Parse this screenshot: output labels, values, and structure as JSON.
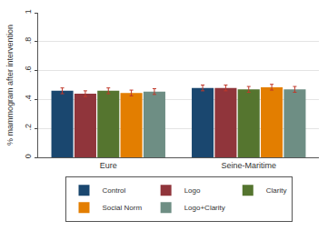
{
  "chart_data": {
    "type": "bar",
    "y_label": "% mammogram after intervention",
    "categories": [
      "Eure",
      "Seine-Maritime"
    ],
    "series": [
      {
        "name": "Control",
        "color": "#1a476f",
        "values": [
          0.46,
          0.48
        ],
        "errors": [
          0.02,
          0.02
        ]
      },
      {
        "name": "Logo",
        "color": "#90353b",
        "values": [
          0.44,
          0.48
        ],
        "errors": [
          0.02,
          0.02
        ]
      },
      {
        "name": "Clarity",
        "color": "#55752f",
        "values": [
          0.46,
          0.47
        ],
        "errors": [
          0.02,
          0.02
        ]
      },
      {
        "name": "Social Norm",
        "color": "#e37e00",
        "values": [
          0.445,
          0.485
        ],
        "errors": [
          0.02,
          0.02
        ]
      },
      {
        "name": "Logo+Clarity",
        "color": "#6e8e84",
        "values": [
          0.455,
          0.47
        ],
        "errors": [
          0.02,
          0.02
        ]
      }
    ],
    "ylim": [
      0,
      1
    ],
    "yticks": [
      0,
      {
        "value": 0.2,
        "label": ".2"
      },
      {
        "value": 0.4,
        "label": ".4"
      },
      {
        "value": 0.6,
        "label": ".6"
      },
      {
        "value": 0.8,
        "label": ".8"
      },
      1
    ],
    "grid": true,
    "legend": "bottom"
  }
}
